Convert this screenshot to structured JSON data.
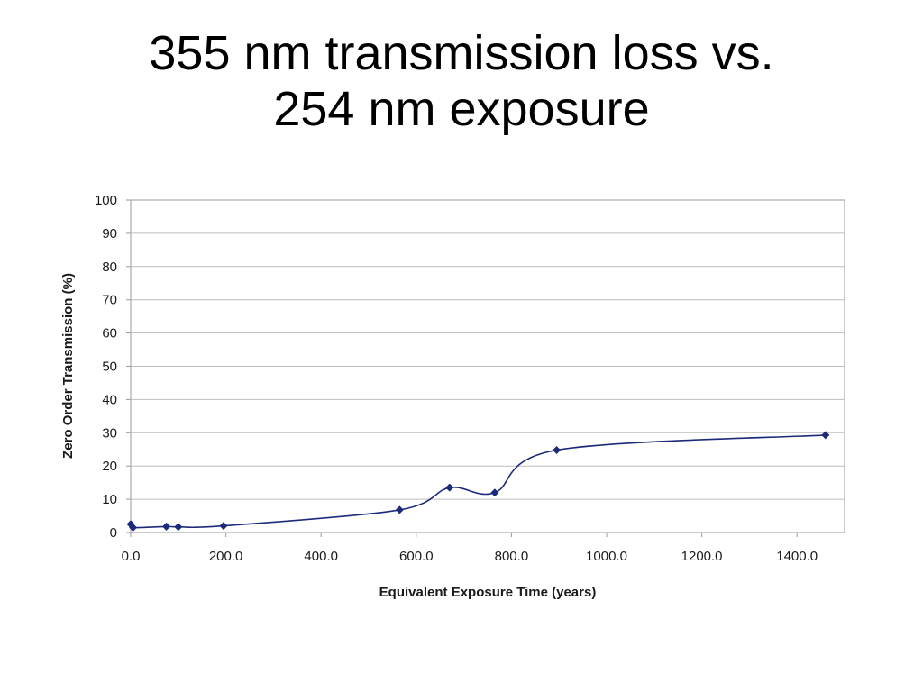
{
  "slide": {
    "title_line1": "355 nm transmission loss vs.",
    "title_line2": "254 nm exposure"
  },
  "chart_data": {
    "type": "line",
    "title": "",
    "xlabel": "Equivalent Exposure Time (years)",
    "ylabel": "Zero Order Transmission (%)",
    "xlim": [
      0,
      1500
    ],
    "ylim": [
      0,
      100
    ],
    "x_ticks": [
      0,
      200,
      400,
      600,
      800,
      1000,
      1200,
      1400
    ],
    "x_tick_labels": [
      "0.0",
      "200.0",
      "400.0",
      "600.0",
      "800.0",
      "1000.0",
      "1200.0",
      "1400.0"
    ],
    "y_ticks": [
      0,
      10,
      20,
      30,
      40,
      50,
      60,
      70,
      80,
      90,
      100
    ],
    "y_tick_labels": [
      "0",
      "10",
      "20",
      "30",
      "40",
      "50",
      "60",
      "70",
      "80",
      "90",
      "100"
    ],
    "grid": true,
    "legend": "none",
    "series": [
      {
        "color": "#1c2a7a",
        "marker": "diamond",
        "smooth": true,
        "points": [
          {
            "x": 0,
            "y": 2.5
          },
          {
            "x": 5,
            "y": 1.5
          },
          {
            "x": 75,
            "y": 1.8
          },
          {
            "x": 100,
            "y": 1.7
          },
          {
            "x": 195,
            "y": 2.0
          },
          {
            "x": 565,
            "y": 6.8
          },
          {
            "x": 670,
            "y": 13.5
          },
          {
            "x": 765,
            "y": 12.0
          },
          {
            "x": 895,
            "y": 24.8
          },
          {
            "x": 1460,
            "y": 29.3
          }
        ]
      }
    ]
  }
}
